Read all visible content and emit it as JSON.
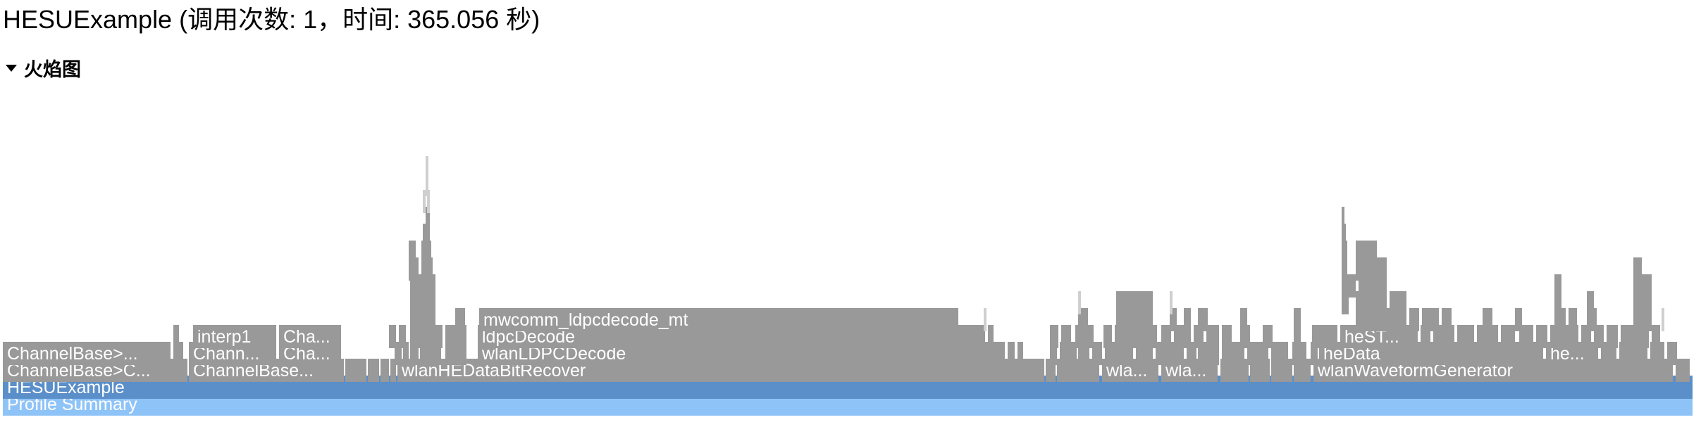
{
  "page": {
    "title": "HESUExample (调用次数: 1，时间: 365.056 秒)",
    "section_label": "火焰图",
    "section_icon": "triangle-down-icon"
  },
  "flame": {
    "colors": {
      "frame": "#999999",
      "root": "#5b8fc9",
      "summary": "#8ec3f7",
      "background": "#ffffff"
    },
    "bars": [
      {
        "id": "profile-summary",
        "label": "Profile Summary"
      },
      {
        "id": "hesuexample",
        "label": "HESUExample"
      },
      {
        "id": "channelbase-c",
        "label": "ChannelBase>C..."
      },
      {
        "id": "channelbase-ellipsis",
        "label": "ChannelBase..."
      },
      {
        "id": "wlanhedatabitrecover",
        "label": "wlanHEDataBitRecover"
      },
      {
        "id": "wla-1",
        "label": "wla..."
      },
      {
        "id": "wla-2",
        "label": "wla..."
      },
      {
        "id": "wlanwaveformgenerator",
        "label": "wlanWaveformGenerator"
      },
      {
        "id": "channelbase-gt",
        "label": "ChannelBase>..."
      },
      {
        "id": "chann",
        "label": "Chann..."
      },
      {
        "id": "cha-1",
        "label": "Cha..."
      },
      {
        "id": "wlanldpcdecode",
        "label": "wlanLDPCDecode"
      },
      {
        "id": "hedata",
        "label": "heData"
      },
      {
        "id": "he",
        "label": "he..."
      },
      {
        "id": "interp1",
        "label": "interp1"
      },
      {
        "id": "cha-2",
        "label": "Cha..."
      },
      {
        "id": "ldpcdecode",
        "label": "ldpcDecode"
      },
      {
        "id": "hest",
        "label": "heST..."
      },
      {
        "id": "mwcomm-ldpcdecode-mt",
        "label": "mwcomm_ldpcdecode_mt"
      }
    ]
  }
}
